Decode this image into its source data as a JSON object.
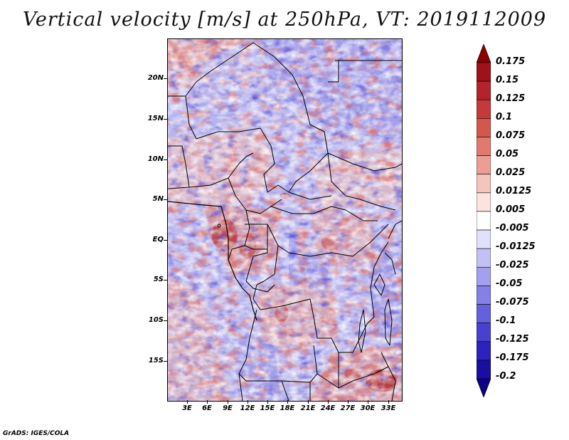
{
  "title": "Vertical velocity [m/s] at 250hPa, VT: 2019112009",
  "credit": "GrADS: IGES/COLA",
  "map": {
    "variable": "Vertical velocity",
    "units": "m/s",
    "level": "250hPa",
    "valid_time": "2019112009",
    "lat_labels": [
      "20N",
      "15N",
      "10N",
      "5N",
      "EQ",
      "5S",
      "10S",
      "15S"
    ],
    "lon_labels": [
      "3E",
      "6E",
      "9E",
      "12E",
      "15E",
      "18E",
      "21E",
      "24E",
      "27E",
      "30E",
      "33E"
    ]
  },
  "colorbar": {
    "labels": [
      "0.175",
      "0.15",
      "0.125",
      "0.1",
      "0.075",
      "0.05",
      "0.025",
      "0.0125",
      "0.005",
      "-0.005",
      "-0.0125",
      "-0.025",
      "-0.05",
      "-0.075",
      "-0.1",
      "-0.125",
      "-0.175",
      "-0.2"
    ],
    "colors": [
      "#8b0000",
      "#a0111b",
      "#b3232b",
      "#c4393a",
      "#d4574e",
      "#e07a6f",
      "#ec9e94",
      "#f5c4bd",
      "#fbe3e0",
      "#ffffff",
      "#e2e1fb",
      "#c3c1f4",
      "#a3a0ee",
      "#8480e8",
      "#6560dd",
      "#4840cf",
      "#2d22bb",
      "#1a0ea0",
      "#0c0088"
    ]
  }
}
